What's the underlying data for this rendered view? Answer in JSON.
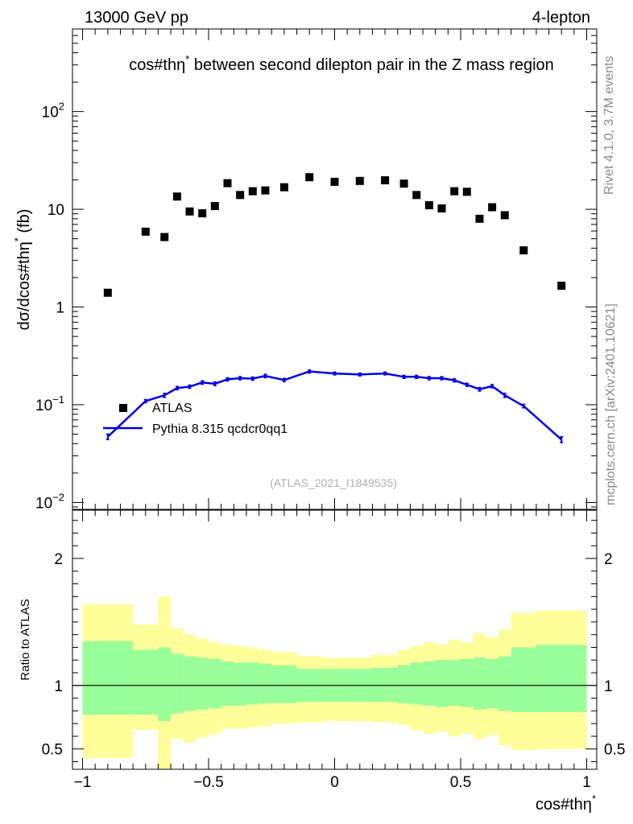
{
  "header": {
    "left": "13000 GeV pp",
    "right": "4-lepton"
  },
  "sidebar": {
    "rivet": "Rivet 4.1.0,  3.7M events",
    "mcplots": "mcplots.cern.ch [arXiv:2401.10621]"
  },
  "chart_data": [
    {
      "type": "scatter",
      "title": "cos#thη* between second dilepton pair in the Z mass region",
      "title_base": "cos#thη",
      "title_sup": "*",
      "title_rest": " between second dilepton pair in the Z mass region",
      "ylabel_base": "dσ/dcos#thη",
      "ylabel_sup": "*",
      "ylabel_rest": " (fb)",
      "yscale": "log",
      "ylim": [
        0.0085,
        700
      ],
      "xlim": [
        -1.04,
        1.04
      ],
      "ytick_labels": [
        {
          "value": 100,
          "base": "10",
          "exp": "2"
        },
        {
          "value": 10,
          "base": "10",
          "exp": ""
        },
        {
          "value": 1,
          "base": "1",
          "exp": ""
        },
        {
          "value": 0.1,
          "base": "10",
          "exp": "−1"
        },
        {
          "value": 0.01,
          "base": "10",
          "exp": "−2"
        }
      ],
      "reference_label": "(ATLAS_2021_I1849535)",
      "legend": {
        "position": "lower-left",
        "entries": [
          "ATLAS",
          "Pythia 8.315 qcdcr0qq1"
        ]
      },
      "series": [
        {
          "name": "ATLAS",
          "style": "square-marker",
          "color": "#000000",
          "x": [
            -0.9,
            -0.75,
            -0.675,
            -0.625,
            -0.575,
            -0.525,
            -0.475,
            -0.425,
            -0.375,
            -0.325,
            -0.275,
            -0.2,
            -0.1,
            0.0,
            0.1,
            0.2,
            0.275,
            0.325,
            0.375,
            0.425,
            0.475,
            0.525,
            0.575,
            0.625,
            0.675,
            0.75,
            0.9
          ],
          "y": [
            1.4,
            5.9,
            5.2,
            13.5,
            9.5,
            9.1,
            10.8,
            18.5,
            14.0,
            15.3,
            15.6,
            16.8,
            21.3,
            19.1,
            19.5,
            19.8,
            18.3,
            14.0,
            11.0,
            10.2,
            15.3,
            15.1,
            8.0,
            10.5,
            8.7,
            3.8,
            1.65
          ]
        },
        {
          "name": "Pythia 8.315 qcdcr0qq1",
          "style": "line-with-errorbars",
          "color": "#0000e6",
          "x": [
            -0.9,
            -0.75,
            -0.675,
            -0.625,
            -0.575,
            -0.525,
            -0.475,
            -0.425,
            -0.375,
            -0.325,
            -0.275,
            -0.2,
            -0.1,
            0.0,
            0.1,
            0.2,
            0.275,
            0.325,
            0.375,
            0.425,
            0.475,
            0.525,
            0.575,
            0.625,
            0.675,
            0.75,
            0.9
          ],
          "y": [
            0.047,
            0.109,
            0.125,
            0.148,
            0.153,
            0.169,
            0.164,
            0.182,
            0.187,
            0.185,
            0.197,
            0.179,
            0.219,
            0.209,
            0.204,
            0.209,
            0.193,
            0.193,
            0.187,
            0.187,
            0.178,
            0.16,
            0.144,
            0.155,
            0.125,
            0.097,
            0.044
          ],
          "err": [
            0.003,
            0.004,
            0.006,
            0.006,
            0.006,
            0.007,
            0.007,
            0.007,
            0.007,
            0.007,
            0.008,
            0.007,
            0.008,
            0.007,
            0.007,
            0.007,
            0.007,
            0.007,
            0.007,
            0.007,
            0.007,
            0.006,
            0.006,
            0.006,
            0.006,
            0.004,
            0.003
          ]
        }
      ]
    },
    {
      "type": "area",
      "ylabel": "Ratio to ATLAS",
      "xlabel_base": "cos#thη",
      "xlabel_sup": "*",
      "xlim": [
        -1.04,
        1.04
      ],
      "ylim": [
        0.34,
        2.38
      ],
      "xticks": [
        -1,
        -0.5,
        0,
        0.5,
        1
      ],
      "xtick_labels": [
        "−1",
        "−0.5",
        "0",
        "0.5",
        "1"
      ],
      "yticks": [
        0.5,
        1,
        2
      ],
      "ytick_labels": [
        "0.5",
        "1",
        "2"
      ],
      "reference_line": 1,
      "bands": [
        {
          "name": "stat+syst",
          "color": "#ffff99",
          "bins": [
            [
              -1.0,
              -0.8,
              0.43,
              1.64
            ],
            [
              -0.8,
              -0.7,
              0.65,
              1.48
            ],
            [
              -0.7,
              -0.65,
              0.34,
              1.7
            ],
            [
              -0.65,
              -0.6,
              0.58,
              1.45
            ],
            [
              -0.6,
              -0.55,
              0.55,
              1.4
            ],
            [
              -0.55,
              -0.5,
              0.59,
              1.37
            ],
            [
              -0.5,
              -0.45,
              0.62,
              1.34
            ],
            [
              -0.45,
              -0.4,
              0.66,
              1.32
            ],
            [
              -0.4,
              -0.35,
              0.66,
              1.31
            ],
            [
              -0.35,
              -0.3,
              0.67,
              1.3
            ],
            [
              -0.3,
              -0.25,
              0.68,
              1.28
            ],
            [
              -0.25,
              -0.15,
              0.7,
              1.26
            ],
            [
              -0.15,
              -0.05,
              0.71,
              1.23
            ],
            [
              -0.05,
              0.05,
              0.72,
              1.22
            ],
            [
              0.05,
              0.15,
              0.72,
              1.22
            ],
            [
              0.15,
              0.25,
              0.71,
              1.24
            ],
            [
              0.25,
              0.3,
              0.69,
              1.28
            ],
            [
              0.3,
              0.35,
              0.65,
              1.31
            ],
            [
              0.35,
              0.4,
              0.62,
              1.34
            ],
            [
              0.4,
              0.45,
              0.64,
              1.32
            ],
            [
              0.45,
              0.5,
              0.6,
              1.36
            ],
            [
              0.5,
              0.55,
              0.62,
              1.34
            ],
            [
              0.55,
              0.6,
              0.58,
              1.41
            ],
            [
              0.6,
              0.65,
              0.61,
              1.38
            ],
            [
              0.65,
              0.7,
              0.53,
              1.44
            ],
            [
              0.7,
              0.8,
              0.49,
              1.57
            ],
            [
              0.8,
              1.0,
              0.5,
              1.59
            ]
          ]
        },
        {
          "name": "stat",
          "color": "#99ff99",
          "bins": [
            [
              -1.0,
              -0.8,
              0.77,
              1.35
            ],
            [
              -0.8,
              -0.7,
              0.77,
              1.28
            ],
            [
              -0.7,
              -0.65,
              0.72,
              1.3
            ],
            [
              -0.65,
              -0.6,
              0.78,
              1.25
            ],
            [
              -0.6,
              -0.55,
              0.8,
              1.23
            ],
            [
              -0.55,
              -0.5,
              0.81,
              1.22
            ],
            [
              -0.5,
              -0.45,
              0.82,
              1.21
            ],
            [
              -0.45,
              -0.4,
              0.84,
              1.19
            ],
            [
              -0.4,
              -0.35,
              0.84,
              1.18
            ],
            [
              -0.35,
              -0.3,
              0.85,
              1.18
            ],
            [
              -0.3,
              -0.25,
              0.86,
              1.17
            ],
            [
              -0.25,
              -0.15,
              0.86,
              1.16
            ],
            [
              -0.15,
              -0.05,
              0.87,
              1.13
            ],
            [
              -0.05,
              0.05,
              0.87,
              1.13
            ],
            [
              0.05,
              0.15,
              0.87,
              1.13
            ],
            [
              0.15,
              0.25,
              0.87,
              1.14
            ],
            [
              0.25,
              0.3,
              0.86,
              1.16
            ],
            [
              0.3,
              0.35,
              0.85,
              1.18
            ],
            [
              0.35,
              0.4,
              0.84,
              1.19
            ],
            [
              0.4,
              0.45,
              0.83,
              1.2
            ],
            [
              0.45,
              0.5,
              0.84,
              1.2
            ],
            [
              0.5,
              0.55,
              0.83,
              1.21
            ],
            [
              0.55,
              0.6,
              0.81,
              1.22
            ],
            [
              0.6,
              0.65,
              0.82,
              1.21
            ],
            [
              0.65,
              0.7,
              0.8,
              1.23
            ],
            [
              0.7,
              0.8,
              0.79,
              1.3
            ],
            [
              0.8,
              1.0,
              0.79,
              1.32
            ]
          ]
        }
      ]
    }
  ]
}
